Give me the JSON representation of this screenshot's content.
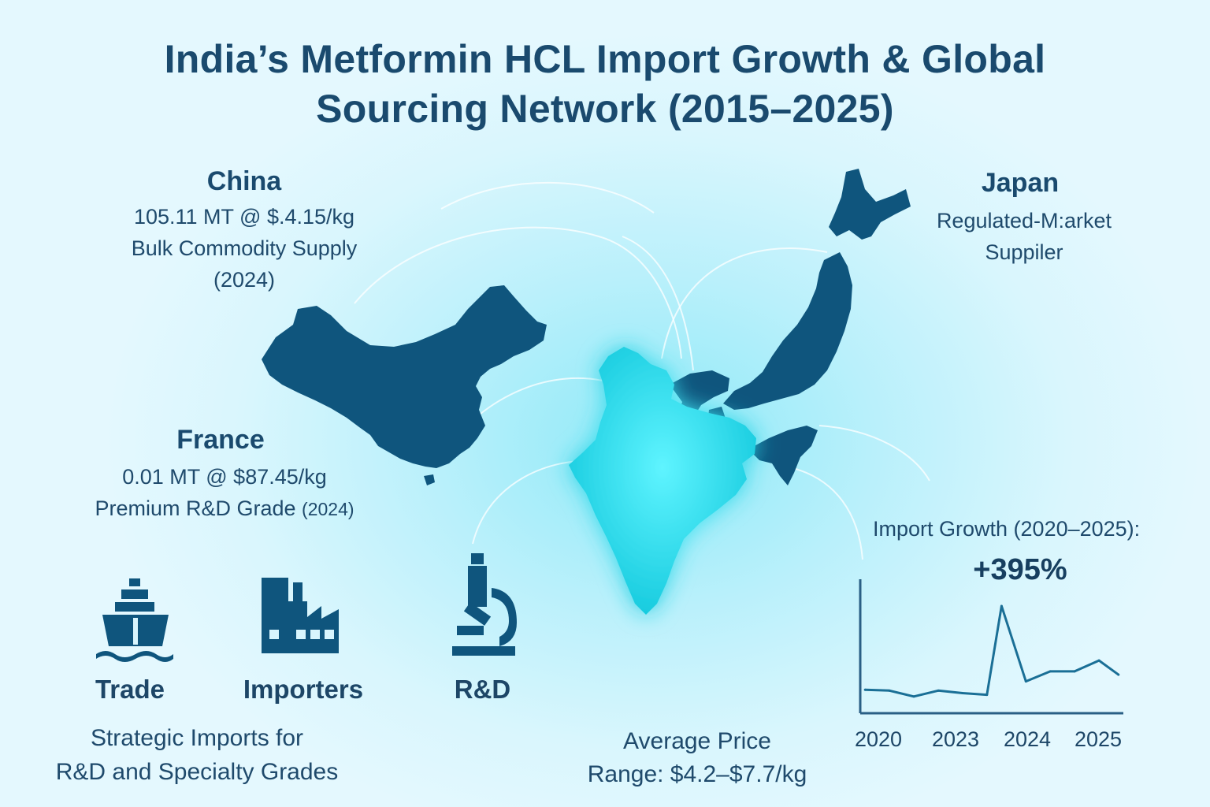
{
  "title": {
    "line1": "India’s Metformin HCL Import Growth & Global",
    "line2": "Sourcing Network (2015–2025)"
  },
  "china": {
    "name": "China",
    "line1": "105.11 MT @ $.4.15/kg",
    "line2": "Bulk Commodity Supply",
    "line3": "(2024)"
  },
  "japan": {
    "name": "Japan",
    "line1": "Regulated-M:arket",
    "line2": "Suppiler"
  },
  "france": {
    "name": "France",
    "line1": "0.01 MT @ $87.45/kg",
    "line2": "Premium R&D Grade",
    "line2_year": "(2024)"
  },
  "icons": [
    {
      "label": "Trade",
      "icon": "ship-icon"
    },
    {
      "label": "Importers",
      "icon": "factory-icon"
    },
    {
      "label": "R&D",
      "icon": "microscope-icon"
    }
  ],
  "strategic": {
    "line1": "Strategic Imports for",
    "line2": "R&D and Specialty Grades"
  },
  "avg_price": {
    "line1": "Average Price",
    "line2": "Range: $4.2–$7.7/kg"
  },
  "growth": {
    "label": "Import Growth (2020–2025):",
    "value": "+395%"
  },
  "colors": {
    "map_dark": "#0f557d",
    "india": "#14d6e6",
    "line": "#1a6f96",
    "text": "#1a4a6e"
  },
  "chart_data": {
    "type": "line",
    "title": "Import Growth (2020–2025):",
    "annotation": "+395%",
    "x_tick_labels": [
      "2020",
      "2023",
      "2024",
      "2025"
    ],
    "series": [
      {
        "name": "Import growth",
        "x": [
          2020.0,
          2020.5,
          2021.0,
          2021.5,
          2022.0,
          2022.5,
          2022.8,
          2023.3,
          2023.8,
          2024.3,
          2024.8,
          2025.2
        ],
        "y": [
          28,
          27,
          20,
          27,
          24,
          22,
          128,
          38,
          50,
          50,
          63,
          46
        ]
      }
    ],
    "xlim": [
      2019.9,
      2025.3
    ],
    "ylim": [
      0,
      160
    ],
    "grid": false
  }
}
